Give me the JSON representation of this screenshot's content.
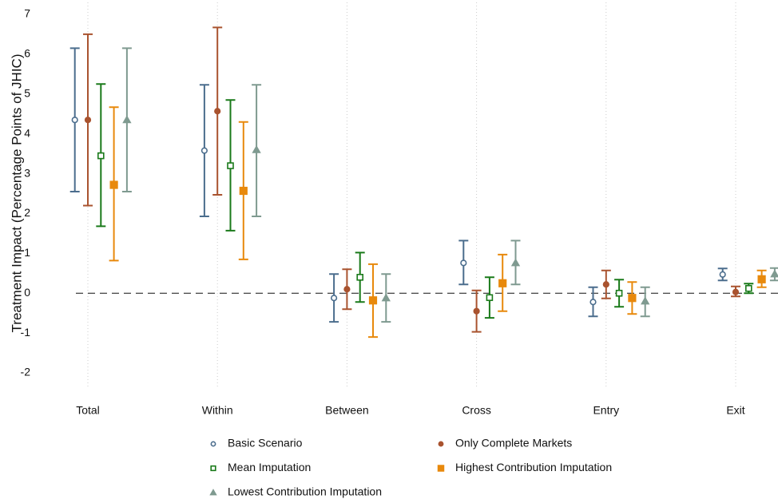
{
  "chart_data": {
    "type": "errorbar",
    "y_label": "Treatment Impact (Percentage Points of JHIC)",
    "categories": [
      "Total",
      "Within",
      "Between",
      "Cross",
      "Entry",
      "Exit"
    ],
    "ylim": [
      -2.4,
      7.3
    ],
    "yticks": [
      -2,
      -1,
      0,
      1,
      2,
      3,
      4,
      5,
      6,
      7
    ],
    "reference_line": 0,
    "grid": "x",
    "series": [
      {
        "name": "Basic Scenario",
        "color": "#4b6d8d",
        "marker": "circle-open",
        "values": [
          4.35,
          3.58,
          -0.12,
          0.76,
          -0.22,
          0.47
        ],
        "lower": [
          2.55,
          1.93,
          -0.72,
          0.22,
          -0.58,
          0.32
        ],
        "upper": [
          6.15,
          5.23,
          0.48,
          1.32,
          0.15,
          0.62
        ]
      },
      {
        "name": "Only Complete Markets",
        "color": "#a9532f",
        "marker": "circle",
        "values": [
          4.35,
          4.57,
          0.1,
          -0.45,
          0.22,
          0.03
        ],
        "lower": [
          2.2,
          2.47,
          -0.4,
          -0.97,
          -0.13,
          -0.08
        ],
        "upper": [
          6.5,
          6.67,
          0.6,
          0.07,
          0.57,
          0.17
        ]
      },
      {
        "name": "Mean Imputation",
        "color": "#1a7a1a",
        "marker": "square-open",
        "values": [
          3.45,
          3.2,
          0.4,
          -0.11,
          0.0,
          0.12
        ],
        "lower": [
          1.68,
          1.57,
          -0.22,
          -0.62,
          -0.34,
          0.0
        ],
        "upper": [
          5.25,
          4.85,
          1.02,
          0.4,
          0.34,
          0.24
        ]
      },
      {
        "name": "Highest Contribution Imputation",
        "color": "#e8890c",
        "marker": "square",
        "values": [
          2.72,
          2.57,
          -0.18,
          0.25,
          -0.12,
          0.35
        ],
        "lower": [
          0.82,
          0.85,
          -1.1,
          -0.45,
          -0.52,
          0.15
        ],
        "upper": [
          4.67,
          4.3,
          0.73,
          0.97,
          0.28,
          0.57
        ]
      },
      {
        "name": "Lowest Contribution Imputation",
        "color": "#7f9a90",
        "marker": "triangle",
        "values": [
          4.35,
          3.6,
          -0.12,
          0.76,
          -0.2,
          0.48
        ],
        "lower": [
          2.55,
          1.93,
          -0.72,
          0.22,
          -0.58,
          0.32
        ],
        "upper": [
          6.15,
          5.23,
          0.48,
          1.32,
          0.15,
          0.63
        ]
      }
    ]
  }
}
